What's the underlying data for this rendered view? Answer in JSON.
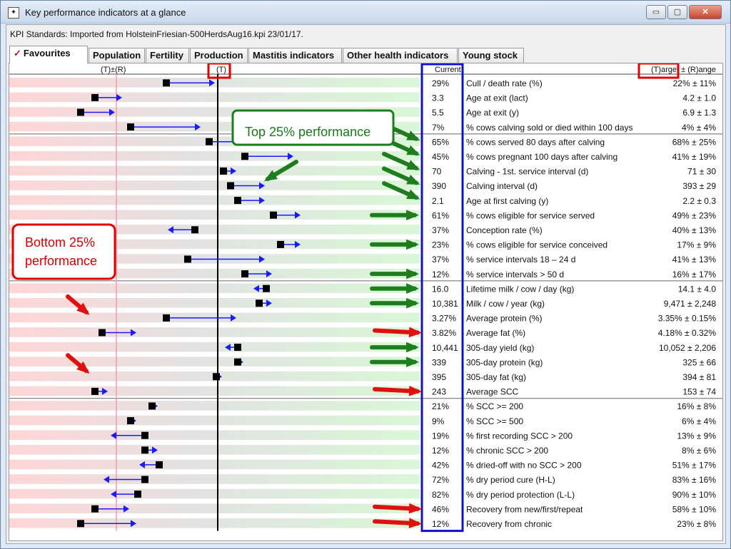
{
  "window": {
    "title": "Key performance indicators at a glance",
    "icon": "kpi-app-icon",
    "controls": {
      "minimize": "▭",
      "maximize": "▢",
      "close": "✕"
    }
  },
  "standards": "KPI Standards: Imported from HolsteinFriesian-500HerdsAug16.kpi 23/01/17.",
  "tabs": [
    {
      "label": "Favourites",
      "icon": "checkmark-icon"
    },
    {
      "label": "Population"
    },
    {
      "label": "Fertility"
    },
    {
      "label": "Production"
    },
    {
      "label": "Mastitis indicators"
    },
    {
      "label": "Other health indicators"
    },
    {
      "label": "Young stock"
    }
  ],
  "headers": {
    "range_marker": "(T)±(R)",
    "target_marker": "(T)",
    "current": "Current",
    "target_range": "(T)arget ± (R)ange"
  },
  "annotations": {
    "top": "Top 25% performance",
    "bottom_line1": "Bottom 25%",
    "bottom_line2": "performance"
  },
  "colors": {
    "bad": "#ffd6d6",
    "good": "#d9f7d6",
    "indicator": "#1a1aff",
    "green_arrow": "#1e7e1e",
    "red_arrow": "#e01010",
    "highlight_box": "#1010cc",
    "callout_red": "#e00000",
    "callout_green": "#1e7e1e",
    "target_box": "#e00000"
  },
  "kpis": [
    {
      "current": "29%",
      "label": "Cull / death rate (%)",
      "target": "22% ± 11%",
      "prev": 0.22,
      "cur": 0.28
    },
    {
      "current": "3.3",
      "label": "Age at exit (lact)",
      "target": "4.2 ± 1.0",
      "prev": 0.12,
      "cur": 0.15
    },
    {
      "current": "5.5",
      "label": "Age at exit (y)",
      "target": "6.9 ± 1.3",
      "prev": 0.1,
      "cur": 0.14
    },
    {
      "current": "7%",
      "label": "% cows calving sold or died within 100 days",
      "target": "4% ± 4%",
      "prev": 0.17,
      "cur": 0.26
    },
    {
      "current": "65%",
      "label": "% cows served 80 days after calving",
      "target": "68% ± 25%",
      "prev": 0.28,
      "cur": 0.35
    },
    {
      "current": "45%",
      "label": "% cows pregnant 100 days after calving",
      "target": "41% ± 19%",
      "prev": 0.33,
      "cur": 0.39
    },
    {
      "current": "70",
      "label": "Calving - 1st. service interval (d)",
      "target": "71 ± 30",
      "prev": 0.3,
      "cur": 0.31
    },
    {
      "current": "390",
      "label": "Calving interval (d)",
      "target": "393 ± 29",
      "prev": 0.31,
      "cur": 0.35
    },
    {
      "current": "2.1",
      "label": "Age at first calving (y)",
      "target": "2.2 ± 0.3",
      "prev": 0.32,
      "cur": 0.35
    },
    {
      "current": "61%",
      "label": "% cows eligible for service served",
      "target": "49% ± 23%",
      "prev": 0.37,
      "cur": 0.4
    },
    {
      "current": "37%",
      "label": "Conception rate (%)",
      "target": "40% ± 13%",
      "prev": 0.26,
      "cur": 0.23
    },
    {
      "current": "23%",
      "label": "% cows eligible for service conceived",
      "target": "17% ± 9%",
      "prev": 0.38,
      "cur": 0.4
    },
    {
      "current": "37%",
      "label": "% service intervals 18 – 24 d",
      "target": "41% ± 13%",
      "prev": 0.25,
      "cur": 0.35
    },
    {
      "current": "12%",
      "label": "% service intervals > 50 d",
      "target": "16% ± 17%",
      "prev": 0.33,
      "cur": 0.36
    },
    {
      "current": "16.0",
      "label": "Lifetime milk / cow / day (kg)",
      "target": "14.1 ± 4.0",
      "prev": 0.36,
      "cur": 0.35
    },
    {
      "current": "10,381",
      "label": "Milk / cow / year (kg)",
      "target": "9,471 ± 2,248",
      "prev": 0.35,
      "cur": 0.36
    },
    {
      "current": "3.27%",
      "label": "Average protein (%)",
      "target": "3.35% ± 0.15%",
      "prev": 0.22,
      "cur": 0.31
    },
    {
      "current": "3.82%",
      "label": "Average fat (%)",
      "target": "4.18% ± 0.32%",
      "prev": 0.13,
      "cur": 0.17
    },
    {
      "current": "10,441",
      "label": "305-day yield (kg)",
      "target": "10,052 ± 2,206",
      "prev": 0.32,
      "cur": 0.31
    },
    {
      "current": "339",
      "label": "305-day protein (kg)",
      "target": "325 ± 66",
      "prev": 0.32,
      "cur": 0.32
    },
    {
      "current": "395",
      "label": "305-day fat (kg)",
      "target": "394 ± 81",
      "prev": 0.29,
      "cur": 0.29
    },
    {
      "current": "243",
      "label": "Average SCC",
      "target": "153 ± 74",
      "prev": 0.12,
      "cur": 0.13
    },
    {
      "current": "21%",
      "label": "% SCC >= 200",
      "target": "16% ± 8%",
      "prev": 0.2,
      "cur": 0.2
    },
    {
      "current": "9%",
      "label": "% SCC >= 500",
      "target": "6% ± 4%",
      "prev": 0.17,
      "cur": 0.17
    },
    {
      "current": "19%",
      "label": "% first recording SCC > 200",
      "target": "13% ± 9%",
      "prev": 0.19,
      "cur": 0.15
    },
    {
      "current": "12%",
      "label": "% chronic SCC > 200",
      "target": "8% ± 6%",
      "prev": 0.19,
      "cur": 0.2
    },
    {
      "current": "42%",
      "label": "% dried-off with no SCC > 200",
      "target": "51% ± 17%",
      "prev": 0.21,
      "cur": 0.19
    },
    {
      "current": "72%",
      "label": "% dry period cure (H-L)",
      "target": "83% ± 16%",
      "prev": 0.19,
      "cur": 0.14
    },
    {
      "current": "82%",
      "label": "% dry period protection (L-L)",
      "target": "90% ± 10%",
      "prev": 0.18,
      "cur": 0.15
    },
    {
      "current": "46%",
      "label": "Recovery from new/first/repeat",
      "target": "58% ± 10%",
      "prev": 0.12,
      "cur": 0.16
    },
    {
      "current": "12%",
      "label": "Recovery from chronic",
      "target": "23% ± 8%",
      "prev": 0.1,
      "cur": 0.17
    }
  ],
  "green_arrow_rows": [
    5,
    6,
    7,
    8,
    9,
    10,
    12,
    14,
    15,
    16,
    19,
    20
  ],
  "red_arrow_rows": [
    18,
    22,
    30,
    31
  ],
  "panel_red_arrow_rows": [
    17,
    21
  ],
  "group_separator_rows": [
    4,
    14,
    22
  ]
}
